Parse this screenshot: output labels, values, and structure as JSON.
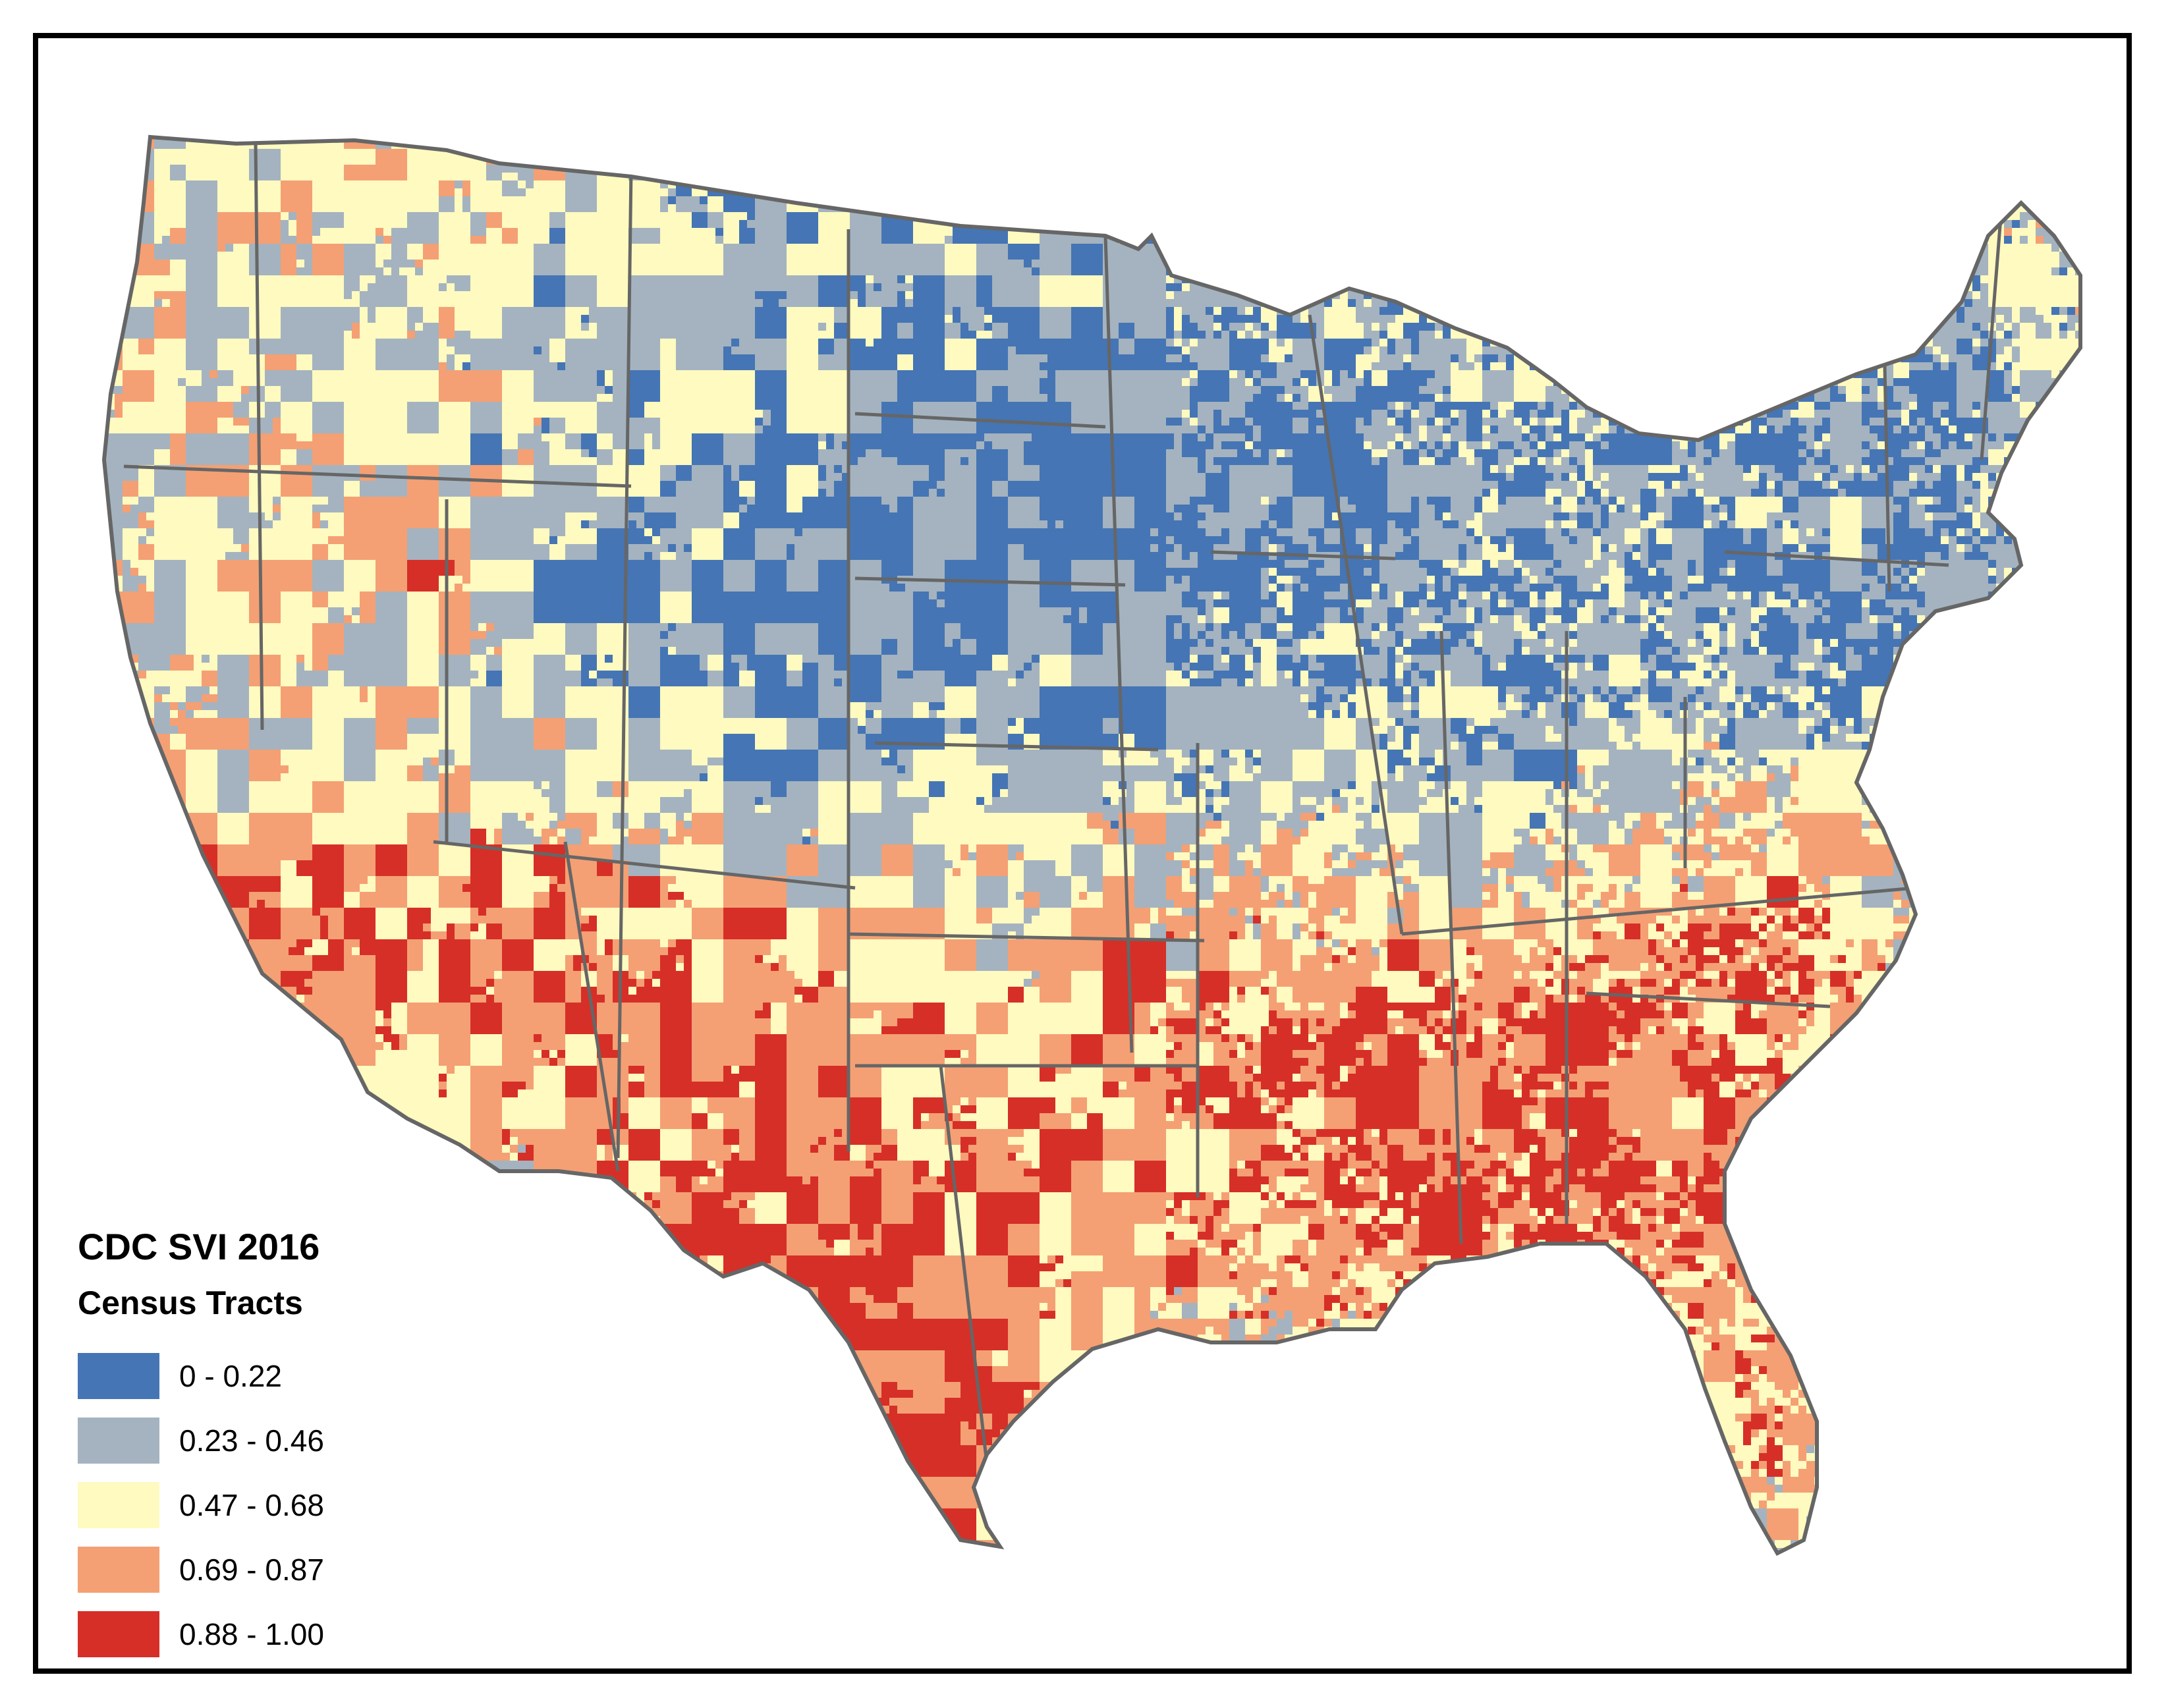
{
  "legend": {
    "title": "CDC SVI 2016",
    "subtitle": "Census Tracts",
    "classes": [
      {
        "label": "0 - 0.22",
        "color": "#4575b4"
      },
      {
        "label": "0.23 - 0.46",
        "color": "#a4b3bf"
      },
      {
        "label": "0.47 - 0.68",
        "color": "#fefac0"
      },
      {
        "label": "0.69 - 0.87",
        "color": "#f4a074"
      },
      {
        "label": "0.88 - 1.00",
        "color": "#d62f27"
      }
    ]
  },
  "map": {
    "region": "contiguous-united-states",
    "boundary_color": "#666666"
  }
}
